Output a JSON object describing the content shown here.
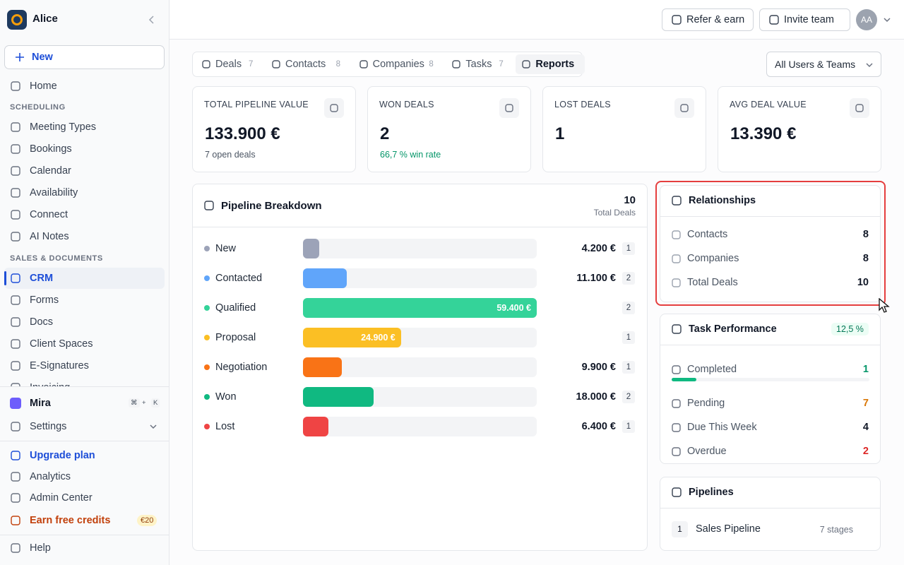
{
  "sidebar": {
    "workspace": "Alice",
    "new_button": "New",
    "nav_top": [
      {
        "label": "Home"
      }
    ],
    "sections": [
      {
        "title": "SCHEDULING",
        "items": [
          {
            "label": "Meeting Types"
          },
          {
            "label": "Bookings"
          },
          {
            "label": "Calendar"
          },
          {
            "label": "Availability"
          },
          {
            "label": "Connect"
          },
          {
            "label": "AI Notes"
          }
        ]
      },
      {
        "title": "SALES & DOCUMENTS",
        "items": [
          {
            "label": "CRM",
            "active": true
          },
          {
            "label": "Forms"
          },
          {
            "label": "Docs"
          },
          {
            "label": "Client Spaces"
          },
          {
            "label": "E-Signatures"
          },
          {
            "label": "Invoicing"
          }
        ]
      }
    ],
    "assistant": {
      "label": "Mira",
      "shortcut": [
        "⌘",
        "+",
        "K"
      ]
    },
    "settings": "Settings",
    "footer": [
      {
        "label": "Upgrade plan",
        "color": "#1d4ed8"
      },
      {
        "label": "Analytics"
      },
      {
        "label": "Admin Center"
      },
      {
        "label": "Earn free credits",
        "color": "#c2410c",
        "badge": "€20"
      }
    ],
    "help": "Help"
  },
  "header": {
    "refer": "Refer & earn",
    "invite": "Invite team",
    "avatar": "AA"
  },
  "tabs": [
    {
      "label": "Deals",
      "count": 7
    },
    {
      "label": "Contacts",
      "count": 8
    },
    {
      "label": "Companies",
      "count": 8
    },
    {
      "label": "Tasks",
      "count": 7
    },
    {
      "label": "Reports",
      "active": true
    }
  ],
  "filter": "All Users & Teams",
  "stats": [
    {
      "label": "TOTAL PIPELINE VALUE",
      "value": "133.900 €",
      "note": "7 open deals"
    },
    {
      "label": "WON DEALS",
      "value": "2",
      "note": "66,7 % win rate",
      "note_color": "#059669"
    },
    {
      "label": "LOST DEALS",
      "value": "1"
    },
    {
      "label": "AVG DEAL VALUE",
      "value": "13.390 €"
    }
  ],
  "pipeline": {
    "title": "Pipeline Breakdown",
    "total": 10,
    "total_label": "Total Deals",
    "stages": [
      {
        "name": "New",
        "color": "#9ca3b8",
        "value": 4200,
        "value_label": "4.200 €",
        "count": 1
      },
      {
        "name": "Contacted",
        "color": "#60a5fa",
        "value": 11100,
        "value_label": "11.100 €",
        "count": 2
      },
      {
        "name": "Qualified",
        "color": "#34d399",
        "value": 59400,
        "value_label": "59.400 €",
        "count": 2
      },
      {
        "name": "Proposal",
        "color": "#fbbf24",
        "value": 24900,
        "value_label": "24.900 €",
        "count": 1
      },
      {
        "name": "Negotiation",
        "color": "#f97316",
        "value": 9900,
        "value_label": "9.900 €",
        "count": 1
      },
      {
        "name": "Won",
        "color": "#10b981",
        "value": 18000,
        "value_label": "18.000 €",
        "count": 2
      },
      {
        "name": "Lost",
        "color": "#ef4444",
        "value": 6400,
        "value_label": "6.400 €",
        "count": 1
      }
    ]
  },
  "relationships": {
    "title": "Relationships",
    "rows": [
      {
        "label": "Contacts",
        "value": 8
      },
      {
        "label": "Companies",
        "value": 8
      },
      {
        "label": "Total Deals",
        "value": 10
      }
    ]
  },
  "tasks": {
    "title": "Task Performance",
    "rate": "12,5 %",
    "rows": [
      {
        "label": "Completed",
        "value": 1,
        "color": "#059669"
      },
      {
        "label": "Pending",
        "value": 7,
        "color": "#d97706"
      },
      {
        "label": "Due This Week",
        "value": 4,
        "color": "#111827"
      },
      {
        "label": "Overdue",
        "value": 2,
        "color": "#dc2626"
      }
    ]
  },
  "pipelines": {
    "title": "Pipelines",
    "items": [
      {
        "index": 1,
        "name": "Sales Pipeline",
        "stages": "7 stages"
      }
    ]
  }
}
